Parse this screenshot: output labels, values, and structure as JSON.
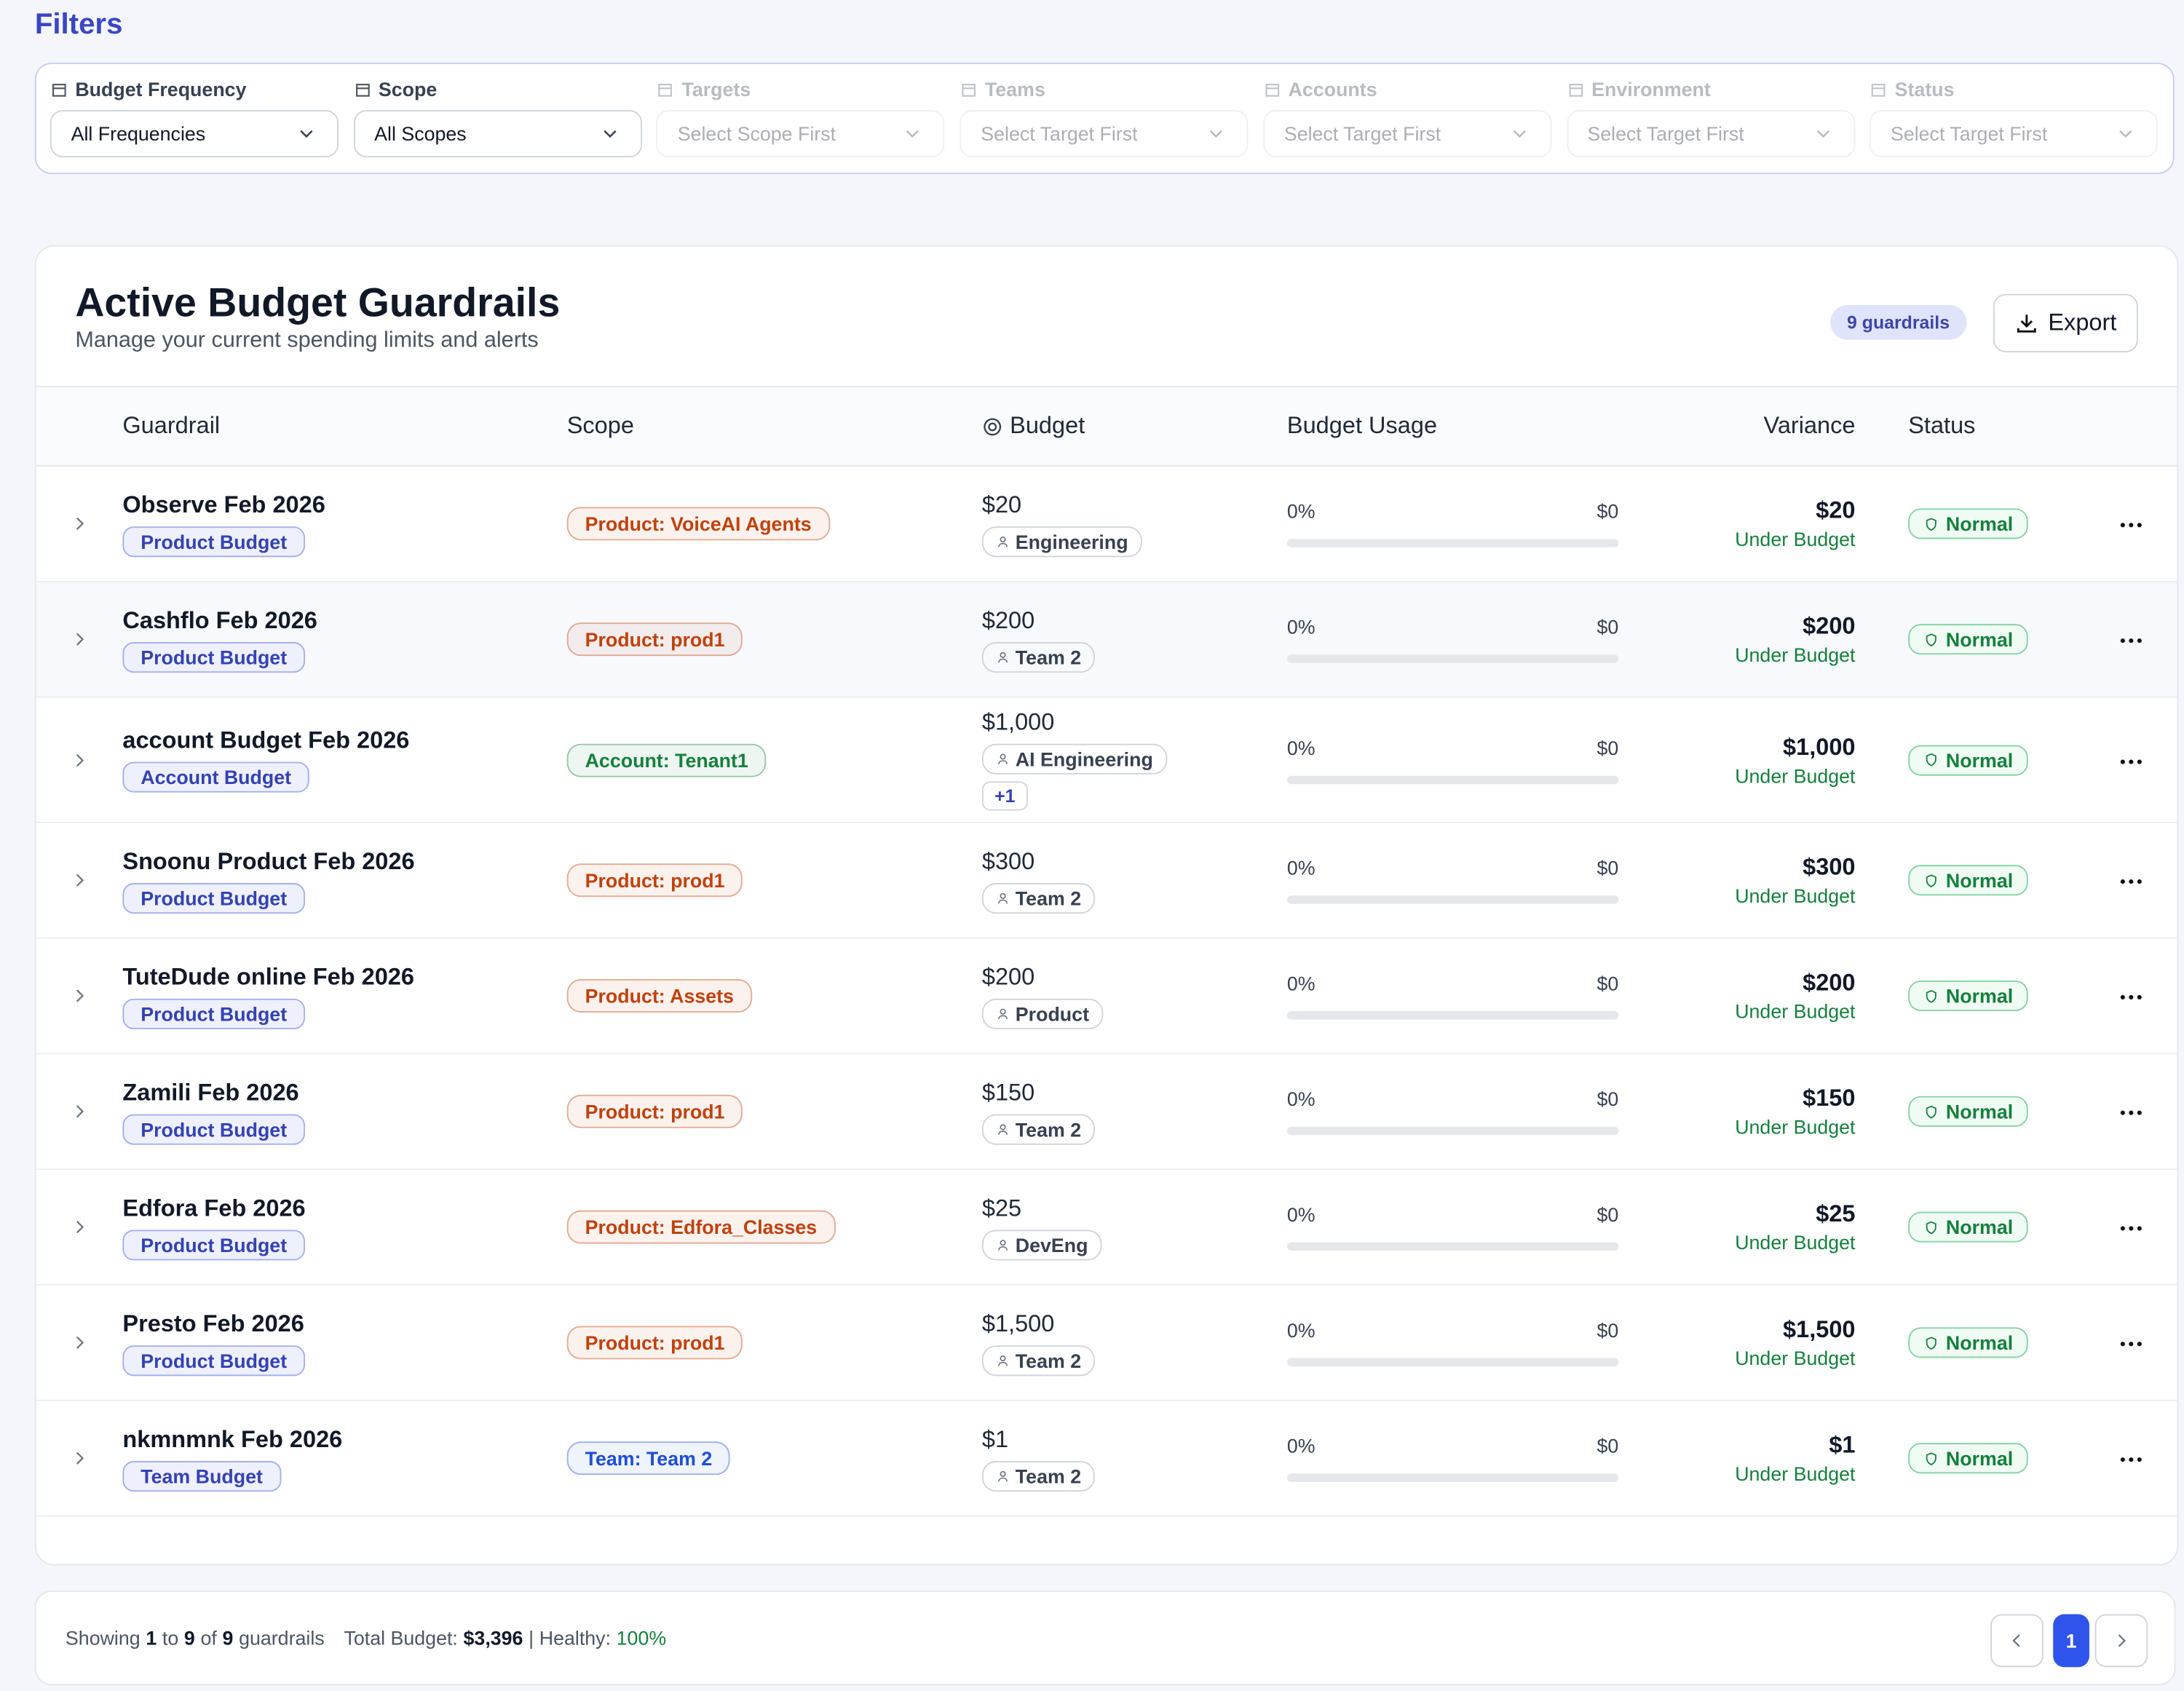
{
  "header": {
    "title": "Filters"
  },
  "filters": [
    {
      "label": "Budget Frequency",
      "value": "All Frequencies",
      "enabled": true
    },
    {
      "label": "Scope",
      "value": "All Scopes",
      "enabled": true
    },
    {
      "label": "Targets",
      "value": "Select Scope First",
      "enabled": false
    },
    {
      "label": "Teams",
      "value": "Select Target First",
      "enabled": false
    },
    {
      "label": "Accounts",
      "value": "Select Target First",
      "enabled": false
    },
    {
      "label": "Environment",
      "value": "Select Target First",
      "enabled": false
    },
    {
      "label": "Status",
      "value": "Select Target First",
      "enabled": false
    }
  ],
  "card": {
    "title": "Active Budget Guardrails",
    "subtitle": "Manage your current spending limits and alerts",
    "count": "9 guardrails",
    "export": "Export"
  },
  "table": {
    "columns": [
      "Guardrail",
      "Scope",
      "Budget",
      "Budget Usage",
      "Variance",
      "Status"
    ],
    "rows": [
      {
        "name": "Observe Feb 2026",
        "type": "Product Budget",
        "scope": "Product: VoiceAI Agents",
        "scope_color": "#c2410c",
        "budget": "$20",
        "team": "Engineering",
        "usage": "0%",
        "spent": "$0",
        "variance": "$20",
        "variance_label": "Under Budget",
        "status": "Normal"
      },
      {
        "name": "Cashflo Feb 2026",
        "type": "Product Budget",
        "scope": "Product: prod1",
        "scope_color": "#c2410c",
        "budget": "$200",
        "team": "Team 2",
        "usage": "0%",
        "spent": "$0",
        "variance": "$200",
        "variance_label": "Under Budget",
        "status": "Normal"
      },
      {
        "name": "account Budget Feb 2026",
        "type": "Account Budget",
        "scope": "Account: Tenant1",
        "scope_color": "#15803d",
        "budget": "$1,000",
        "team": "AI Engineering",
        "extra": "+1",
        "usage": "0%",
        "spent": "$0",
        "variance": "$1,000",
        "variance_label": "Under Budget",
        "status": "Normal"
      },
      {
        "name": "Snoonu Product Feb 2026",
        "type": "Product Budget",
        "scope": "Product: prod1",
        "scope_color": "#c2410c",
        "budget": "$300",
        "team": "Team 2",
        "usage": "0%",
        "spent": "$0",
        "variance": "$300",
        "variance_label": "Under Budget",
        "status": "Normal"
      },
      {
        "name": "TuteDude online Feb 2026",
        "type": "Product Budget",
        "scope": "Product: Assets",
        "scope_color": "#c2410c",
        "budget": "$200",
        "team": "Product",
        "usage": "0%",
        "spent": "$0",
        "variance": "$200",
        "variance_label": "Under Budget",
        "status": "Normal"
      },
      {
        "name": "Zamili Feb 2026",
        "type": "Product Budget",
        "scope": "Product: prod1",
        "scope_color": "#c2410c",
        "budget": "$150",
        "team": "Team 2",
        "usage": "0%",
        "spent": "$0",
        "variance": "$150",
        "variance_label": "Under Budget",
        "status": "Normal"
      },
      {
        "name": "Edfora Feb 2026",
        "type": "Product Budget",
        "scope": "Product: Edfora_Classes",
        "scope_color": "#c2410c",
        "budget": "$25",
        "team": "DevEng",
        "usage": "0%",
        "spent": "$0",
        "variance": "$25",
        "variance_label": "Under Budget",
        "status": "Normal"
      },
      {
        "name": "Presto Feb 2026",
        "type": "Product Budget",
        "scope": "Product: prod1",
        "scope_color": "#c2410c",
        "budget": "$1,500",
        "team": "Team 2",
        "usage": "0%",
        "spent": "$0",
        "variance": "$1,500",
        "variance_label": "Under Budget",
        "status": "Normal"
      },
      {
        "name": "nkmnmnk Feb 2026",
        "type": "Team Budget",
        "scope": "Team: Team 2",
        "scope_color": "#1d4ed8",
        "budget": "$1",
        "team": "Team 2",
        "usage": "0%",
        "spent": "$0",
        "variance": "$1",
        "variance_label": "Under Budget",
        "status": "Normal"
      }
    ]
  },
  "footer": {
    "showing": "Showing",
    "from": "1",
    "to_word": "to",
    "to": "9",
    "of_word": "of",
    "total": "9",
    "unit": "guardrails",
    "total_label": "Total Budget:",
    "total_value": "$3,396",
    "separator": "|",
    "healthy_label": "Healthy:",
    "healthy_value": "100%",
    "page": "1"
  }
}
